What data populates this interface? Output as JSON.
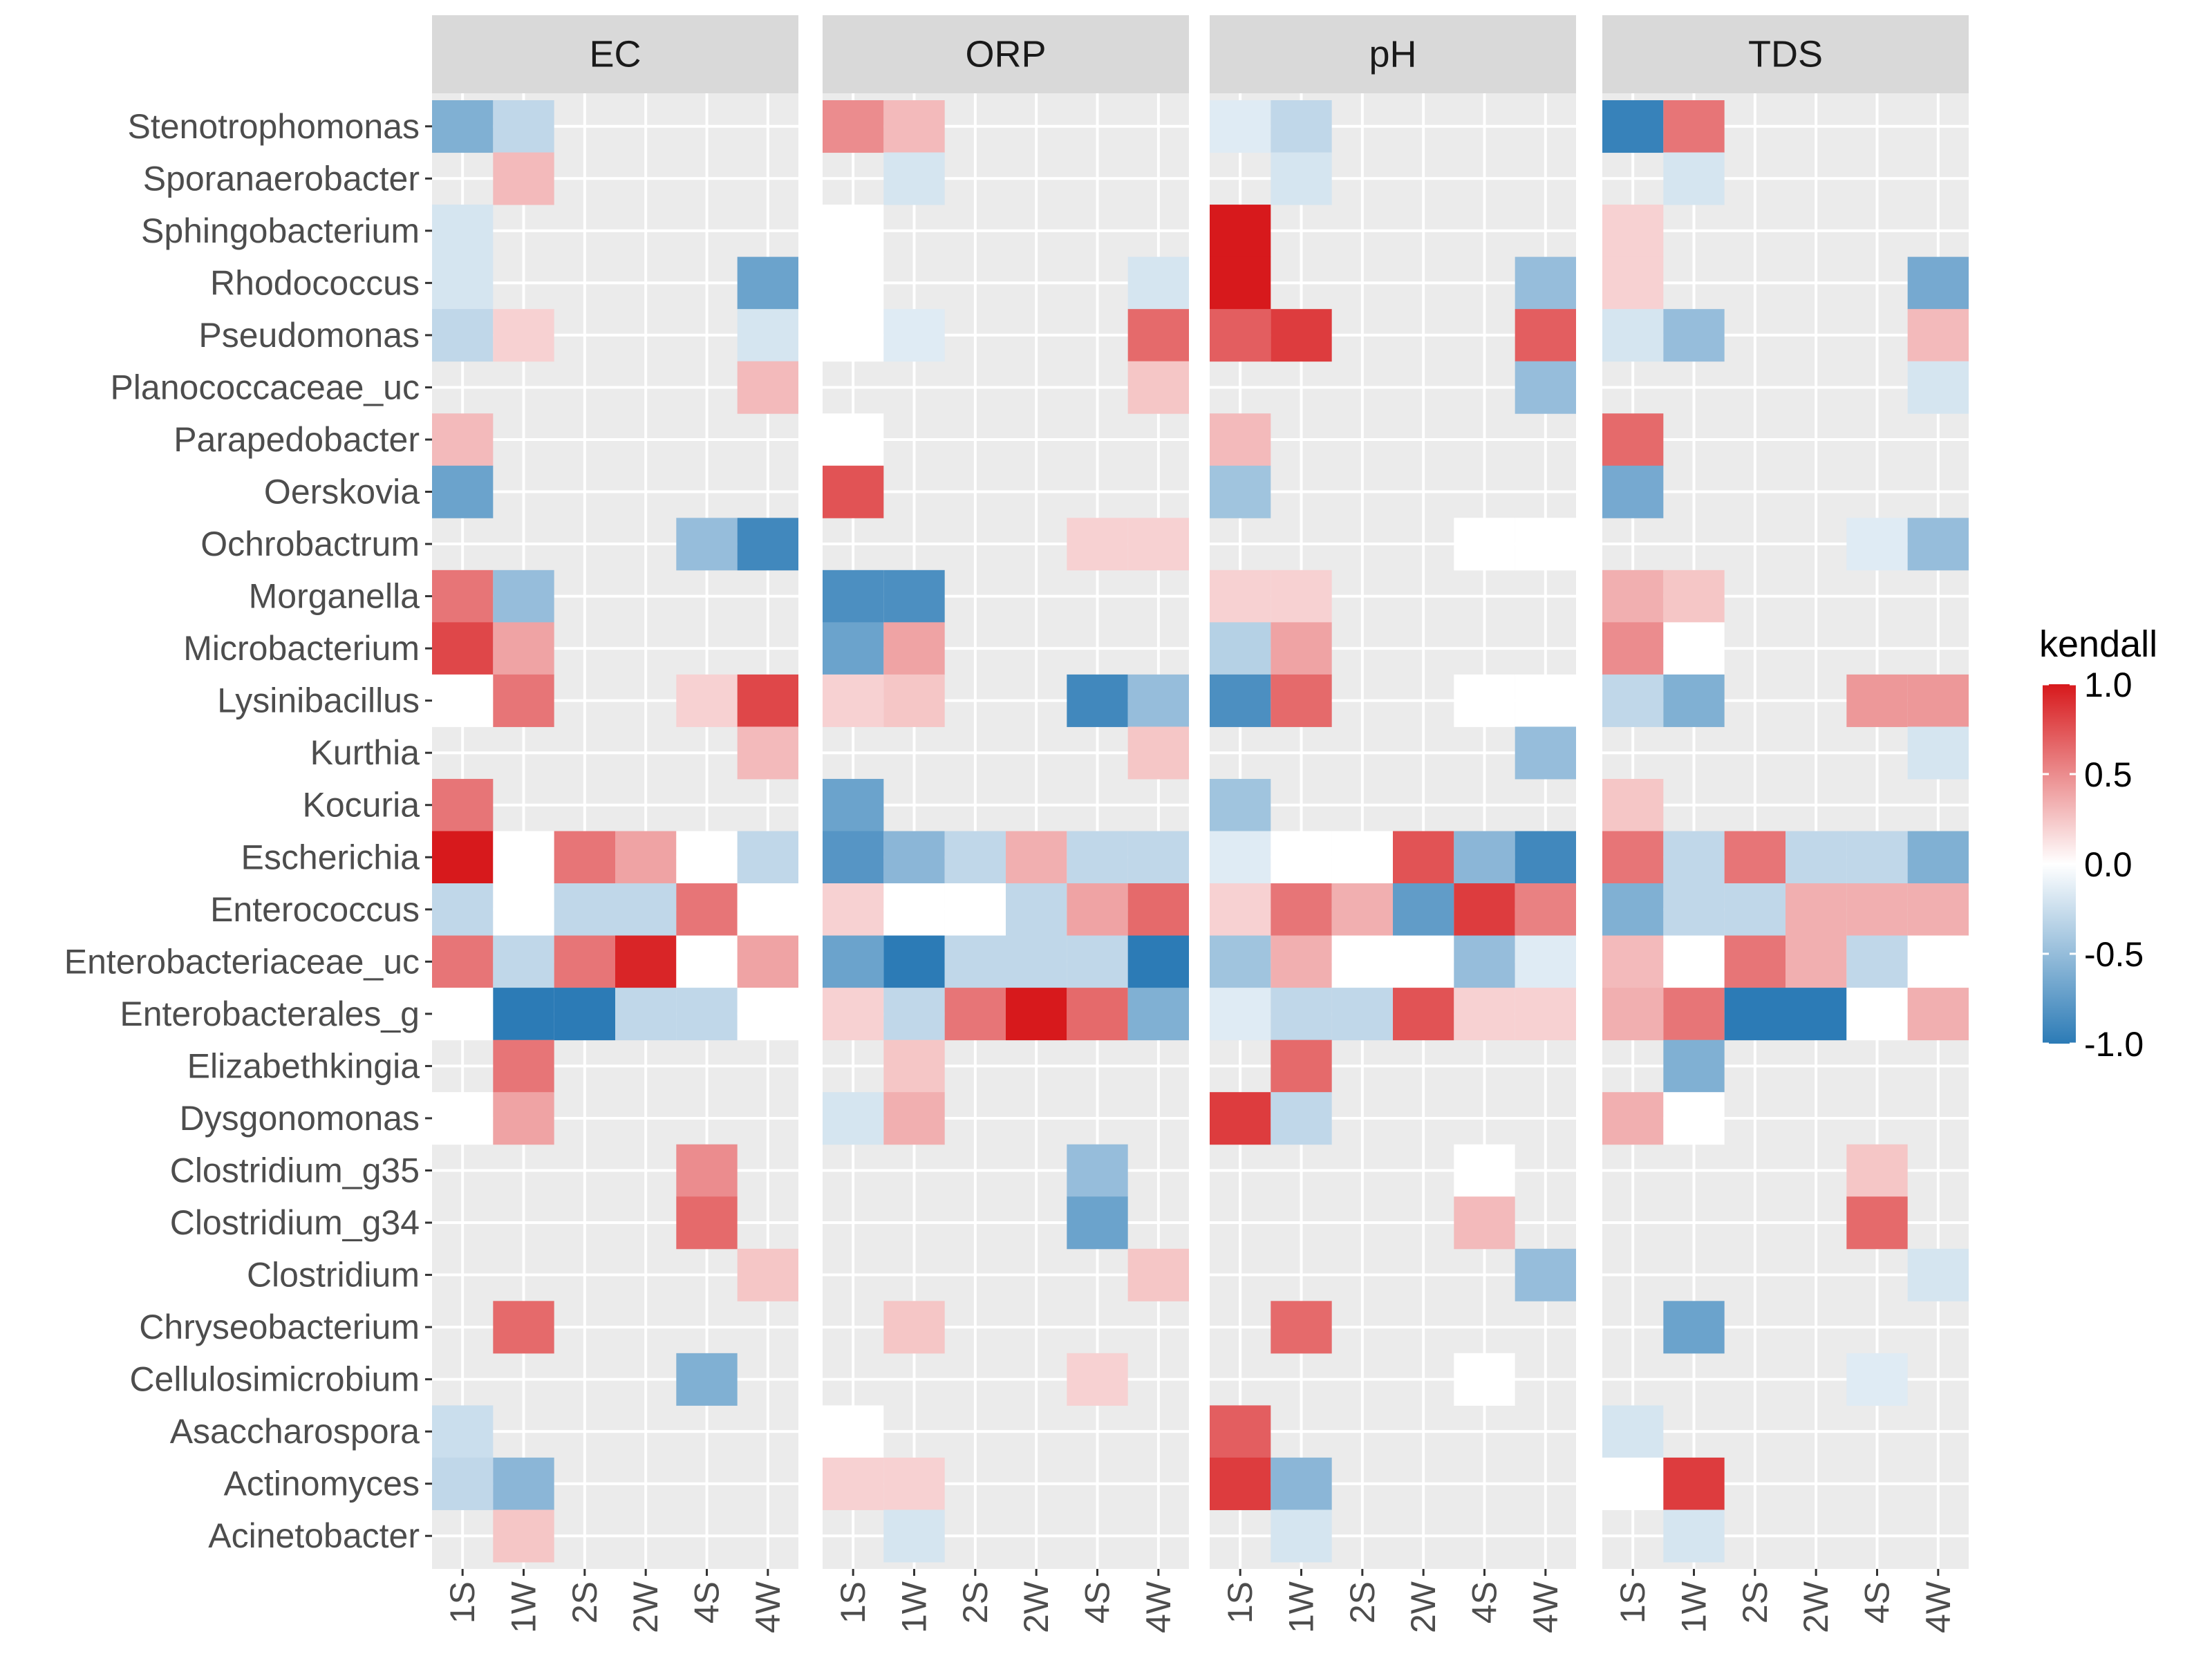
{
  "chart_data": {
    "type": "heatmap",
    "facet_by": "environmental parameter",
    "panels": [
      "EC",
      "ORP",
      "pH",
      "TDS"
    ],
    "x_categories": [
      "1S",
      "1W",
      "2S",
      "2W",
      "4S",
      "4W"
    ],
    "y_categories": [
      "Stenotrophomonas",
      "Sporanaerobacter",
      "Sphingobacterium",
      "Rhodococcus",
      "Pseudomonas",
      "Planococcaceae_uc",
      "Parapedobacter",
      "Oerskovia",
      "Ochrobactrum",
      "Morganella",
      "Microbacterium",
      "Lysinibacillus",
      "Kurthia",
      "Kocuria",
      "Escherichia",
      "Enterococcus",
      "Enterobacteriaceae_uc",
      "Enterobacterales_g",
      "Elizabethkingia",
      "Dysgonomonas",
      "Clostridium_g35",
      "Clostridium_g34",
      "Clostridium",
      "Chryseobacterium",
      "Cellulosimicrobium",
      "Asaccharospora",
      "Actinomyces",
      "Acinetobacter"
    ],
    "values": {
      "EC": [
        [
          -0.6,
          -0.3,
          null,
          null,
          null,
          null
        ],
        [
          null,
          0.3,
          null,
          null,
          null,
          null
        ],
        [
          -0.2,
          null,
          null,
          null,
          null,
          null
        ],
        [
          -0.2,
          null,
          null,
          null,
          null,
          -0.7
        ],
        [
          -0.3,
          0.2,
          null,
          null,
          null,
          -0.2
        ],
        [
          null,
          null,
          null,
          null,
          null,
          0.3
        ],
        [
          0.3,
          null,
          null,
          null,
          null,
          null
        ],
        [
          -0.7,
          null,
          null,
          null,
          null,
          null
        ],
        [
          null,
          null,
          null,
          null,
          -0.5,
          -0.9
        ],
        [
          0.6,
          -0.5,
          null,
          null,
          null,
          null
        ],
        [
          0.8,
          0.4,
          null,
          null,
          null,
          null
        ],
        [
          0.0,
          0.6,
          null,
          null,
          0.2,
          0.8
        ],
        [
          null,
          null,
          null,
          null,
          null,
          0.3
        ],
        [
          0.6,
          null,
          null,
          null,
          null,
          null
        ],
        [
          1.0,
          0.0,
          0.6,
          0.4,
          0.0,
          -0.3
        ],
        [
          -0.3,
          0.0,
          -0.3,
          -0.3,
          0.6,
          0.0
        ],
        [
          0.6,
          -0.3,
          0.6,
          0.95,
          0.0,
          0.4
        ],
        [
          0.0,
          -1.0,
          -1.0,
          -0.3,
          -0.3,
          0.0
        ],
        [
          null,
          0.6,
          null,
          null,
          null,
          null
        ],
        [
          0.0,
          0.4,
          null,
          null,
          null,
          null
        ],
        [
          null,
          null,
          null,
          null,
          0.5,
          null
        ],
        [
          null,
          null,
          null,
          null,
          0.65,
          null
        ],
        [
          null,
          null,
          null,
          null,
          null,
          0.25
        ],
        [
          null,
          0.65,
          null,
          null,
          null,
          null
        ],
        [
          null,
          null,
          null,
          null,
          -0.6,
          null
        ],
        [
          -0.25,
          null,
          null,
          null,
          null,
          null
        ],
        [
          -0.3,
          -0.55,
          null,
          null,
          null,
          null
        ],
        [
          null,
          0.25,
          null,
          null,
          null,
          null
        ]
      ],
      "ORP": [
        [
          0.5,
          0.3,
          null,
          null,
          null,
          null
        ],
        [
          null,
          -0.2,
          null,
          null,
          null,
          null
        ],
        [
          0.0,
          null,
          null,
          null,
          null,
          null
        ],
        [
          0.0,
          null,
          null,
          null,
          null,
          -0.2
        ],
        [
          0.0,
          -0.15,
          null,
          null,
          null,
          0.65
        ],
        [
          null,
          null,
          null,
          null,
          null,
          0.25
        ],
        [
          0.0,
          null,
          null,
          null,
          null,
          null
        ],
        [
          0.75,
          null,
          null,
          null,
          null,
          null
        ],
        [
          null,
          null,
          null,
          null,
          0.2,
          0.2
        ],
        [
          -0.85,
          -0.85,
          null,
          null,
          null,
          null
        ],
        [
          -0.7,
          0.4,
          null,
          null,
          null,
          null
        ],
        [
          0.2,
          0.25,
          null,
          null,
          -0.9,
          -0.5
        ],
        [
          null,
          null,
          null,
          null,
          null,
          0.25
        ],
        [
          -0.7,
          null,
          null,
          null,
          null,
          null
        ],
        [
          -0.8,
          -0.55,
          -0.3,
          0.35,
          -0.3,
          -0.3
        ],
        [
          0.2,
          0.0,
          0.0,
          -0.3,
          0.4,
          0.65
        ],
        [
          -0.7,
          -1.0,
          -0.3,
          -0.3,
          -0.3,
          -1.0
        ],
        [
          0.2,
          -0.3,
          0.6,
          1.0,
          0.65,
          -0.6
        ],
        [
          null,
          0.25,
          null,
          null,
          null,
          null
        ],
        [
          -0.2,
          0.35,
          null,
          null,
          null,
          null
        ],
        [
          null,
          null,
          null,
          null,
          -0.5,
          null
        ],
        [
          null,
          null,
          null,
          null,
          -0.7,
          null
        ],
        [
          null,
          null,
          null,
          null,
          null,
          0.25
        ],
        [
          null,
          0.25,
          null,
          null,
          null,
          null
        ],
        [
          null,
          null,
          null,
          null,
          0.2,
          null
        ],
        [
          0.0,
          null,
          null,
          null,
          null,
          null
        ],
        [
          0.2,
          0.2,
          null,
          null,
          null,
          null
        ],
        [
          null,
          -0.2,
          null,
          null,
          null,
          null
        ]
      ],
      "pH": [
        [
          -0.15,
          -0.3,
          null,
          null,
          null,
          null
        ],
        [
          null,
          -0.2,
          null,
          null,
          null,
          null
        ],
        [
          1.0,
          null,
          null,
          null,
          null,
          null
        ],
        [
          1.0,
          null,
          null,
          null,
          null,
          -0.5
        ],
        [
          0.7,
          0.85,
          null,
          null,
          null,
          0.7
        ],
        [
          null,
          null,
          null,
          null,
          null,
          -0.5
        ],
        [
          0.3,
          null,
          null,
          null,
          null,
          null
        ],
        [
          -0.45,
          null,
          null,
          null,
          null,
          null
        ],
        [
          null,
          null,
          null,
          null,
          0.0,
          0.0
        ],
        [
          0.2,
          0.2,
          null,
          null,
          null,
          null
        ],
        [
          -0.35,
          0.4,
          null,
          null,
          null,
          null
        ],
        [
          -0.85,
          0.65,
          null,
          null,
          0.0,
          0.0
        ],
        [
          null,
          null,
          null,
          null,
          null,
          -0.5
        ],
        [
          -0.45,
          null,
          null,
          null,
          null,
          null
        ],
        [
          -0.15,
          0.0,
          0.0,
          0.75,
          -0.55,
          -0.9
        ],
        [
          0.2,
          0.6,
          0.35,
          -0.75,
          0.85,
          0.55
        ],
        [
          -0.45,
          0.35,
          0.0,
          0.0,
          -0.5,
          -0.15
        ],
        [
          -0.15,
          -0.3,
          -0.3,
          0.75,
          0.2,
          0.2
        ],
        [
          null,
          0.65,
          null,
          null,
          null,
          null
        ],
        [
          0.85,
          -0.3,
          null,
          null,
          null,
          null
        ],
        [
          null,
          null,
          null,
          null,
          0.0,
          null
        ],
        [
          null,
          null,
          null,
          null,
          0.3,
          null
        ],
        [
          null,
          null,
          null,
          null,
          null,
          -0.5
        ],
        [
          null,
          0.65,
          null,
          null,
          null,
          null
        ],
        [
          null,
          null,
          null,
          null,
          0.0,
          null
        ],
        [
          0.7,
          null,
          null,
          null,
          null,
          null
        ],
        [
          0.85,
          -0.55,
          null,
          null,
          null,
          null
        ],
        [
          null,
          -0.2,
          null,
          null,
          null,
          null
        ]
      ],
      "TDS": [
        [
          -0.95,
          0.6,
          null,
          null,
          null,
          null
        ],
        [
          null,
          -0.2,
          null,
          null,
          null,
          null
        ],
        [
          0.2,
          null,
          null,
          null,
          null,
          null
        ],
        [
          0.2,
          null,
          null,
          null,
          null,
          -0.65
        ],
        [
          -0.2,
          -0.5,
          null,
          null,
          null,
          0.3
        ],
        [
          null,
          null,
          null,
          null,
          null,
          -0.2
        ],
        [
          0.65,
          null,
          null,
          null,
          null,
          null
        ],
        [
          -0.65,
          null,
          null,
          null,
          null,
          null
        ],
        [
          null,
          null,
          null,
          null,
          -0.15,
          -0.5
        ],
        [
          0.35,
          0.25,
          null,
          null,
          null,
          null
        ],
        [
          0.5,
          0.0,
          null,
          null,
          null,
          null
        ],
        [
          -0.3,
          -0.6,
          null,
          null,
          0.45,
          0.45
        ],
        [
          null,
          null,
          null,
          null,
          null,
          -0.2
        ],
        [
          0.25,
          null,
          null,
          null,
          null,
          null
        ],
        [
          0.6,
          -0.3,
          0.6,
          -0.3,
          -0.3,
          -0.6
        ],
        [
          -0.6,
          -0.3,
          -0.3,
          0.35,
          0.35,
          0.35
        ],
        [
          0.3,
          0.0,
          0.6,
          0.35,
          -0.3,
          0.0
        ],
        [
          0.35,
          0.6,
          -1.0,
          -1.0,
          0.0,
          0.35
        ],
        [
          null,
          -0.6,
          null,
          null,
          null,
          null
        ],
        [
          0.35,
          0.0,
          null,
          null,
          null,
          null
        ],
        [
          null,
          null,
          null,
          null,
          0.25,
          null
        ],
        [
          null,
          null,
          null,
          null,
          0.65,
          null
        ],
        [
          null,
          null,
          null,
          null,
          null,
          -0.2
        ],
        [
          null,
          -0.7,
          null,
          null,
          null,
          null
        ],
        [
          null,
          null,
          null,
          null,
          -0.15,
          null
        ],
        [
          -0.2,
          null,
          null,
          null,
          null,
          null
        ],
        [
          0.0,
          0.85,
          null,
          null,
          null,
          null
        ],
        [
          null,
          -0.2,
          null,
          null,
          null,
          null
        ]
      ]
    },
    "legend": {
      "title": "kendall",
      "labels": [
        "1.0",
        "0.5",
        "0.0",
        "-0.5",
        "-1.0"
      ],
      "range": [
        -1.0,
        1.0
      ],
      "placement": "right"
    },
    "colors": {
      "low": "#2c7bb6",
      "mid": "#ffffff",
      "high": "#d7191c",
      "panel_background": "#ebebeb",
      "strip_background": "#d9d9d9",
      "grid": "#ffffff"
    },
    "xlabel": "",
    "ylabel": "",
    "grid": true
  }
}
